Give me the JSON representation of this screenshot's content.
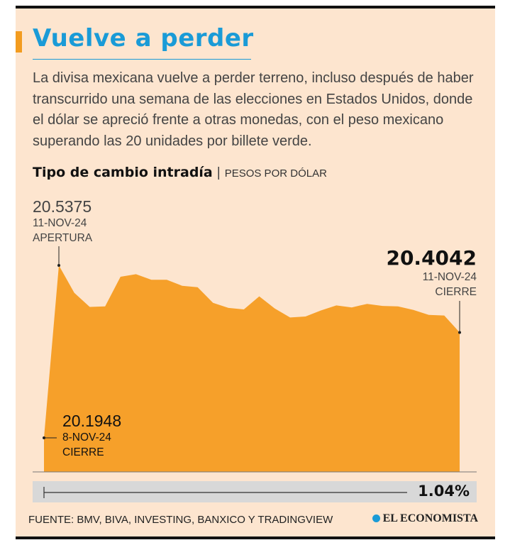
{
  "header": {
    "title": "Vuelve a perder",
    "description": "La divisa mexicana vuelve a perder terreno, incluso después de haber transcurrido una semana de las elecciones en Estados Unidos, donde el dólar se apreció frente a otras monedas, con el peso mexicano superando las 20 unidades por billete verde."
  },
  "colors": {
    "accent": "#f39c1f",
    "title": "#1a9bd7",
    "area": "#f6a02a"
  },
  "chart_data": {
    "type": "area",
    "title": "Tipo de cambio intradía",
    "unit": "PESOS POR DÓLAR",
    "values": [
      20.1948,
      20.5375,
      20.483,
      20.455,
      20.456,
      20.515,
      20.52,
      20.509,
      20.509,
      20.497,
      20.494,
      20.463,
      20.453,
      20.45,
      20.476,
      20.452,
      20.434,
      20.436,
      20.448,
      20.458,
      20.454,
      20.461,
      20.457,
      20.456,
      20.449,
      20.439,
      20.438,
      20.4042
    ],
    "annotations": {
      "open": {
        "value": "20.5375",
        "date": "11-NOV-24",
        "label": "APERTURA"
      },
      "close": {
        "value": "20.4042",
        "date": "11-NOV-24",
        "label": "CIERRE"
      },
      "prev_close": {
        "value": "20.1948",
        "date": "8-NOV-24",
        "label": "CIERRE"
      }
    },
    "change_pct": "1.04%"
  },
  "footer": {
    "source": "FUENTE: BMV, BIVA, INVESTING, BANXICO Y TRADINGVIEW",
    "brand": "EL ECONOMISTA"
  }
}
